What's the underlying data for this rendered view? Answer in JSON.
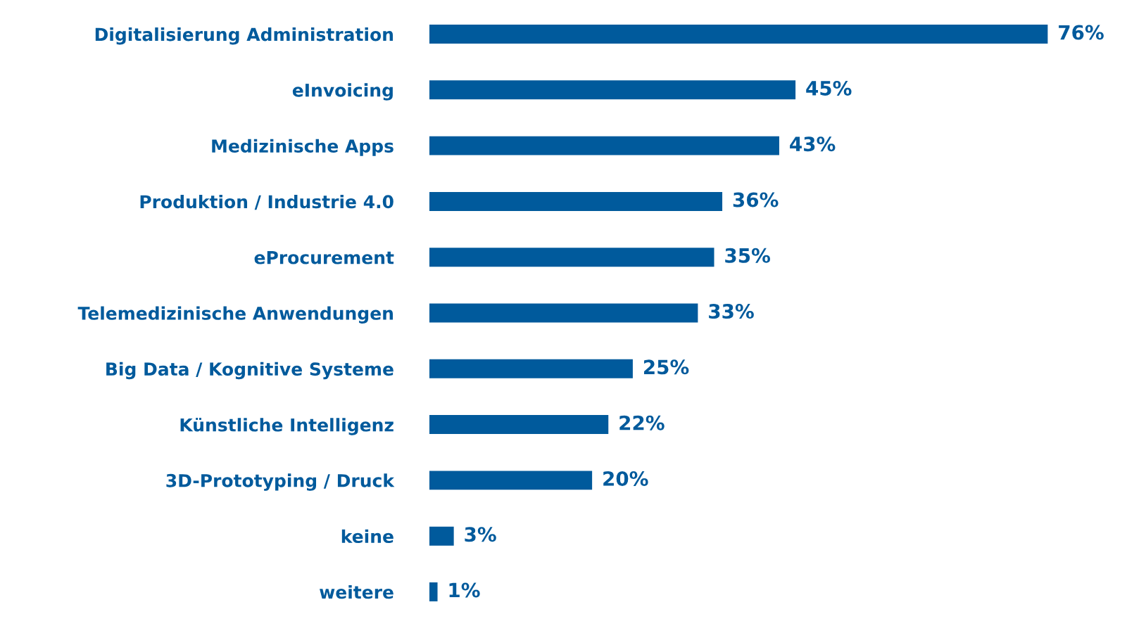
{
  "chart_data": {
    "type": "bar",
    "orientation": "horizontal",
    "categories": [
      "Digitalisierung Administration",
      "eInvoicing",
      "Medizinische Apps",
      "Produktion / Industrie 4.0",
      "eProcurement",
      "Telemedizinische Anwendungen",
      "Big Data / Kognitive Systeme",
      "Künstliche Intelligenz",
      "3D-Prototyping / Druck",
      "keine",
      "weitere"
    ],
    "values": [
      76,
      45,
      43,
      36,
      35,
      33,
      25,
      22,
      20,
      3,
      1
    ],
    "value_labels": [
      "76%",
      "45%",
      "43%",
      "36%",
      "35%",
      "33%",
      "25%",
      "22%",
      "20%",
      "3%",
      "1%"
    ],
    "color": "#005a9c",
    "grid": false,
    "tick_labels": "y"
  }
}
